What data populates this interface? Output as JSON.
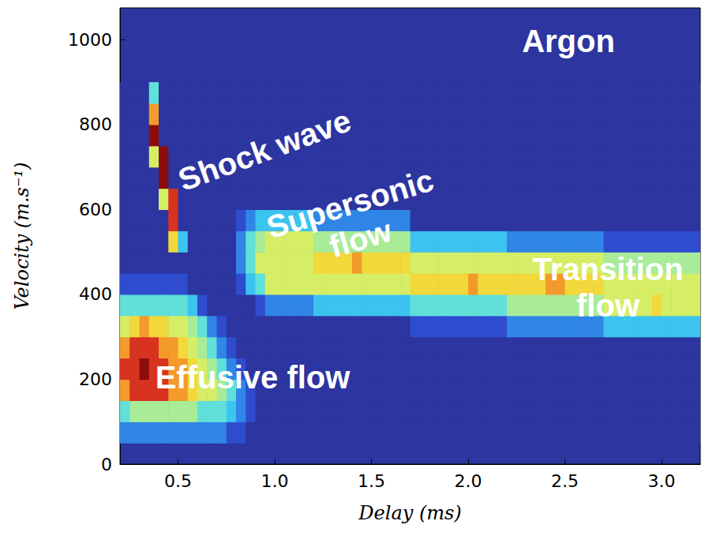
{
  "chart_data": {
    "type": "heatmap",
    "title": "Argon",
    "x_label": "Delay (ms)",
    "y_label": "Velocity (m.s⁻¹)",
    "xlim": [
      0.2,
      3.2
    ],
    "ylim": [
      0,
      1075
    ],
    "xticks": [
      0.5,
      {
        "value": 1,
        "label": "1.0"
      },
      1.5,
      {
        "value": 2,
        "label": "2.0"
      },
      2.5,
      {
        "value": 3,
        "label": "3.0"
      }
    ],
    "yticks": [
      0,
      200,
      400,
      600,
      800,
      1000
    ],
    "grid": false,
    "annotations": [
      "Shock wave",
      "Supersonic flow",
      "Transition flow",
      "Effusive flow"
    ],
    "zlim": [
      0,
      10
    ],
    "x": [
      0.225,
      0.275,
      0.325,
      0.375,
      0.425,
      0.475,
      0.525,
      0.575,
      0.625,
      0.675,
      0.725,
      0.775,
      0.825,
      0.875,
      0.925,
      0.975,
      1.025,
      1.075,
      1.125,
      1.175,
      1.225,
      1.275,
      1.325,
      1.375,
      1.425,
      1.475,
      1.525,
      1.575,
      1.625,
      1.675,
      1.725,
      1.775,
      1.825,
      1.875,
      1.925,
      1.975,
      2.025,
      2.075,
      2.125,
      2.175,
      2.225,
      2.275,
      2.325,
      2.375,
      2.425,
      2.475,
      2.525,
      2.575,
      2.625,
      2.675,
      2.725,
      2.775,
      2.825,
      2.875,
      2.925,
      2.975,
      3.025,
      3.075,
      3.125,
      3.175
    ],
    "y": [
      75,
      125,
      175,
      225,
      275,
      325,
      375,
      425,
      475,
      525,
      575,
      625,
      675,
      725,
      775,
      825,
      875
    ],
    "z": [
      [
        2,
        2,
        2,
        2,
        2,
        2,
        2,
        2,
        2,
        2,
        2,
        1,
        1,
        0,
        0,
        0,
        0,
        0,
        0,
        0,
        0,
        0,
        0,
        0,
        0,
        0,
        0,
        0,
        0,
        0,
        0,
        0,
        0,
        0,
        0,
        0,
        0,
        0,
        0,
        0,
        0,
        0,
        0,
        0,
        0,
        0,
        0,
        0,
        0,
        0,
        0,
        0,
        0,
        0,
        0,
        0,
        0,
        0,
        0,
        0
      ],
      [
        4,
        5,
        5,
        5,
        5,
        5,
        5,
        5,
        4,
        4,
        4,
        3,
        2,
        1,
        0,
        0,
        0,
        0,
        0,
        0,
        0,
        0,
        0,
        0,
        0,
        0,
        0,
        0,
        0,
        0,
        0,
        0,
        0,
        0,
        0,
        0,
        0,
        0,
        0,
        0,
        0,
        0,
        0,
        0,
        0,
        0,
        0,
        0,
        0,
        0,
        0,
        0,
        0,
        0,
        0,
        0,
        0,
        0,
        0,
        0
      ],
      [
        8,
        9,
        9,
        9,
        9,
        8,
        8,
        7,
        6,
        6,
        5,
        4,
        2,
        1,
        0,
        0,
        0,
        0,
        0,
        0,
        0,
        0,
        0,
        0,
        0,
        0,
        0,
        0,
        0,
        0,
        0,
        0,
        0,
        0,
        0,
        0,
        0,
        0,
        0,
        0,
        0,
        0,
        0,
        0,
        0,
        0,
        0,
        0,
        0,
        0,
        0,
        0,
        0,
        0,
        0,
        0,
        0,
        0,
        0,
        0
      ],
      [
        9,
        9,
        10,
        9,
        9,
        8,
        8,
        7,
        6,
        5,
        4,
        2,
        1,
        0,
        0,
        0,
        0,
        0,
        0,
        0,
        0,
        0,
        0,
        0,
        0,
        0,
        0,
        0,
        0,
        0,
        0,
        0,
        0,
        0,
        0,
        0,
        0,
        0,
        0,
        0,
        0,
        0,
        0,
        0,
        0,
        0,
        0,
        0,
        0,
        0,
        0,
        0,
        0,
        0,
        0,
        0,
        0,
        0,
        0,
        0
      ],
      [
        8,
        9,
        9,
        9,
        8,
        8,
        7,
        6,
        5,
        4,
        2,
        1,
        0,
        0,
        0,
        0,
        0,
        0,
        0,
        0,
        0,
        0,
        0,
        0,
        0,
        0,
        0,
        0,
        0,
        0,
        0,
        0,
        0,
        0,
        0,
        0,
        0,
        0,
        0,
        0,
        0,
        0,
        0,
        0,
        0,
        0,
        0,
        0,
        0,
        0,
        0,
        0,
        0,
        0,
        0,
        0,
        0,
        0,
        0,
        0
      ],
      [
        6,
        7,
        8,
        7,
        7,
        6,
        6,
        5,
        4,
        2,
        1,
        0,
        0,
        0,
        0,
        0,
        0,
        0,
        0,
        0,
        0,
        0,
        0,
        0,
        0,
        0,
        0,
        0,
        0,
        0,
        1,
        1,
        1,
        1,
        1,
        1,
        1,
        1,
        1,
        1,
        2,
        2,
        2,
        2,
        2,
        2,
        2,
        2,
        2,
        2,
        3,
        3,
        3,
        3,
        3,
        3,
        3,
        3,
        3,
        3
      ],
      [
        4,
        4,
        4,
        4,
        4,
        4,
        4,
        3,
        1,
        0,
        0,
        0,
        0,
        0,
        1,
        2,
        2,
        2,
        2,
        2,
        3,
        3,
        3,
        3,
        3,
        3,
        3,
        3,
        3,
        3,
        4,
        4,
        4,
        4,
        4,
        4,
        4,
        4,
        4,
        4,
        5,
        5,
        5,
        5,
        5,
        5,
        5,
        5,
        5,
        5,
        6,
        6,
        6,
        6,
        6,
        7,
        6,
        6,
        6,
        6
      ],
      [
        1,
        1,
        1,
        1,
        1,
        1,
        1,
        0,
        0,
        0,
        0,
        0,
        1,
        3,
        4,
        6,
        6,
        6,
        6,
        6,
        6,
        6,
        6,
        6,
        6,
        6,
        6,
        6,
        6,
        6,
        7,
        7,
        7,
        7,
        7,
        7,
        8,
        7,
        7,
        7,
        7,
        7,
        7,
        7,
        8,
        8,
        7,
        7,
        7,
        7,
        6,
        6,
        6,
        6,
        6,
        6,
        6,
        6,
        6,
        6
      ],
      [
        0,
        0,
        0,
        0,
        0,
        0,
        0,
        0,
        0,
        0,
        0,
        0,
        2,
        4,
        6,
        6,
        6,
        6,
        6,
        6,
        7,
        7,
        7,
        7,
        8,
        7,
        7,
        7,
        7,
        7,
        6,
        6,
        6,
        6,
        6,
        6,
        6,
        6,
        6,
        6,
        6,
        6,
        6,
        6,
        6,
        6,
        6,
        6,
        6,
        6,
        5,
        5,
        5,
        5,
        5,
        5,
        5,
        5,
        5,
        5
      ],
      [
        0,
        0,
        0,
        0,
        0,
        7,
        3,
        0,
        0,
        0,
        0,
        0,
        2,
        4,
        5,
        6,
        6,
        6,
        6,
        6,
        5,
        5,
        5,
        5,
        5,
        5,
        5,
        5,
        5,
        5,
        3,
        3,
        3,
        3,
        3,
        3,
        3,
        3,
        3,
        3,
        2,
        2,
        2,
        2,
        2,
        2,
        2,
        2,
        2,
        2,
        1,
        1,
        1,
        1,
        1,
        1,
        1,
        1,
        1,
        1
      ],
      [
        0,
        0,
        0,
        0,
        0,
        9,
        0,
        0,
        0,
        0,
        0,
        0,
        1,
        2,
        3,
        3,
        3,
        3,
        3,
        3,
        2,
        2,
        2,
        2,
        2,
        2,
        2,
        2,
        2,
        2,
        0,
        0,
        0,
        0,
        0,
        0,
        0,
        0,
        0,
        0,
        0,
        0,
        0,
        0,
        0,
        0,
        0,
        0,
        0,
        0,
        0,
        0,
        0,
        0,
        0,
        0,
        0,
        0,
        0,
        0
      ],
      [
        0,
        0,
        0,
        0,
        6,
        9,
        0,
        0,
        0,
        0,
        0,
        0,
        0,
        0,
        0,
        0,
        0,
        0,
        0,
        0,
        0,
        0,
        0,
        0,
        0,
        0,
        0,
        0,
        0,
        0,
        0,
        0,
        0,
        0,
        0,
        0,
        0,
        0,
        0,
        0,
        0,
        0,
        0,
        0,
        0,
        0,
        0,
        0,
        0,
        0,
        0,
        0,
        0,
        0,
        0,
        0,
        0,
        0,
        0,
        0
      ],
      [
        0,
        0,
        0,
        0,
        10,
        0,
        0,
        0,
        0,
        0,
        0,
        0,
        0,
        0,
        0,
        0,
        0,
        0,
        0,
        0,
        0,
        0,
        0,
        0,
        0,
        0,
        0,
        0,
        0,
        0,
        0,
        0,
        0,
        0,
        0,
        0,
        0,
        0,
        0,
        0,
        0,
        0,
        0,
        0,
        0,
        0,
        0,
        0,
        0,
        0,
        0,
        0,
        0,
        0,
        0,
        0,
        0,
        0,
        0,
        0
      ],
      [
        0,
        0,
        0,
        6,
        10,
        0,
        0,
        0,
        0,
        0,
        0,
        0,
        0,
        0,
        0,
        0,
        0,
        0,
        0,
        0,
        0,
        0,
        0,
        0,
        0,
        0,
        0,
        0,
        0,
        0,
        0,
        0,
        0,
        0,
        0,
        0,
        0,
        0,
        0,
        0,
        0,
        0,
        0,
        0,
        0,
        0,
        0,
        0,
        0,
        0,
        0,
        0,
        0,
        0,
        0,
        0,
        0,
        0,
        0,
        0
      ],
      [
        0,
        0,
        0,
        10,
        0,
        0,
        0,
        0,
        0,
        0,
        0,
        0,
        0,
        0,
        0,
        0,
        0,
        0,
        0,
        0,
        0,
        0,
        0,
        0,
        0,
        0,
        0,
        0,
        0,
        0,
        0,
        0,
        0,
        0,
        0,
        0,
        0,
        0,
        0,
        0,
        0,
        0,
        0,
        0,
        0,
        0,
        0,
        0,
        0,
        0,
        0,
        0,
        0,
        0,
        0,
        0,
        0,
        0,
        0,
        0
      ],
      [
        0,
        0,
        0,
        8,
        0,
        0,
        0,
        0,
        0,
        0,
        0,
        0,
        0,
        0,
        0,
        0,
        0,
        0,
        0,
        0,
        0,
        0,
        0,
        0,
        0,
        0,
        0,
        0,
        0,
        0,
        0,
        0,
        0,
        0,
        0,
        0,
        0,
        0,
        0,
        0,
        0,
        0,
        0,
        0,
        0,
        0,
        0,
        0,
        0,
        0,
        0,
        0,
        0,
        0,
        0,
        0,
        0,
        0,
        0,
        0
      ],
      [
        0,
        0,
        0,
        4,
        0,
        0,
        0,
        0,
        0,
        0,
        0,
        0,
        0,
        0,
        0,
        0,
        0,
        0,
        0,
        0,
        0,
        0,
        0,
        0,
        0,
        0,
        0,
        0,
        0,
        0,
        0,
        0,
        0,
        0,
        0,
        0,
        0,
        0,
        0,
        0,
        0,
        0,
        0,
        0,
        0,
        0,
        0,
        0,
        0,
        0,
        0,
        0,
        0,
        0,
        0,
        0,
        0,
        0,
        0,
        0
      ]
    ]
  }
}
